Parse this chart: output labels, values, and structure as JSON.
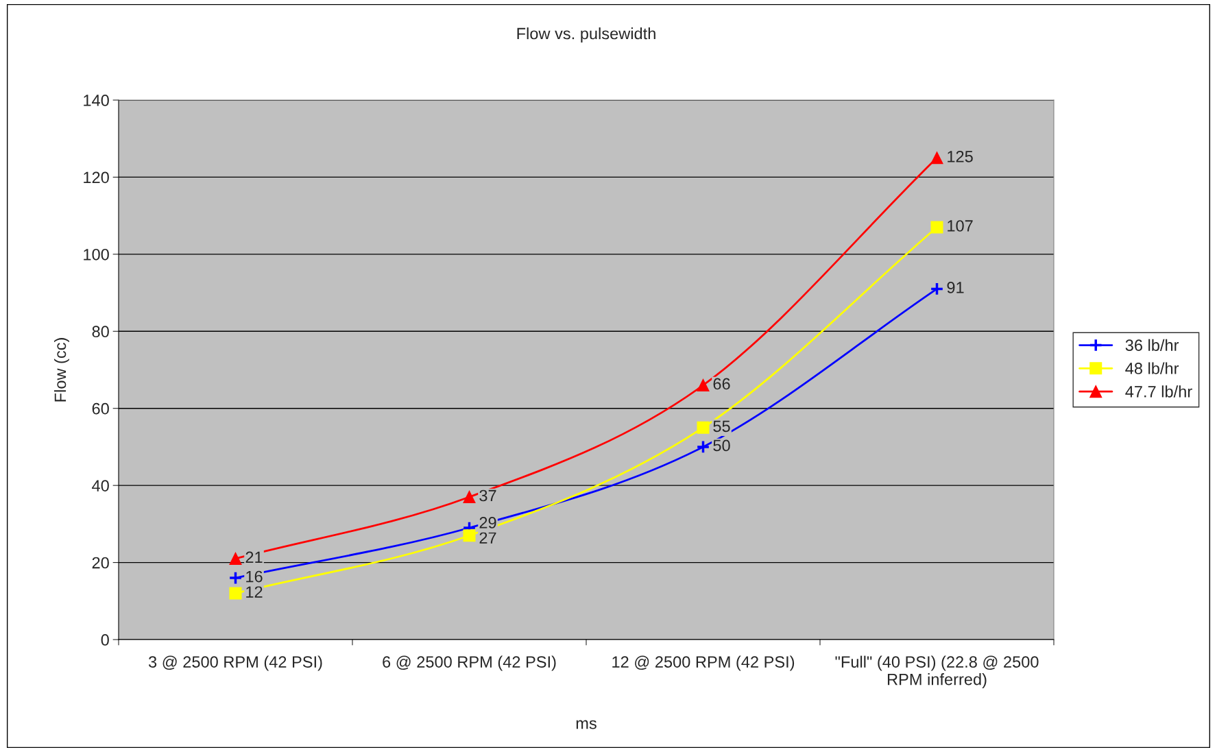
{
  "chart_data": {
    "type": "line",
    "title": "Flow vs. pulsewidth",
    "xlabel": "ms",
    "ylabel": "Flow (cc)",
    "categories": [
      "3 @ 2500 RPM (42 PSI)",
      "6 @ 2500 RPM (42 PSI)",
      "12 @ 2500 RPM (42 PSI)",
      "\"Full\" (40 PSI) (22.8 @ 2500 RPM inferred)"
    ],
    "series": [
      {
        "name": "36 lb/hr",
        "color": "#0000ff",
        "marker": "cross",
        "values": [
          16,
          29,
          50,
          91
        ]
      },
      {
        "name": "48 lb/hr",
        "color": "#ffff00",
        "marker": "square",
        "values": [
          12,
          27,
          55,
          107
        ]
      },
      {
        "name": "47.7 lb/hr",
        "color": "#ff0000",
        "marker": "triangle",
        "values": [
          21,
          37,
          66,
          125
        ]
      }
    ],
    "ylim": [
      0,
      140
    ],
    "yticks": [
      0,
      20,
      40,
      60,
      80,
      100,
      120,
      140
    ],
    "grid": "y",
    "legend": "right",
    "data_labels": true
  }
}
